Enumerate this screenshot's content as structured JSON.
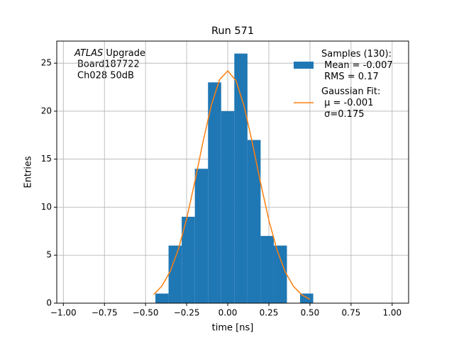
{
  "chart_data": {
    "type": "histogram",
    "title": "Run 571",
    "xlabel": "time [ns]",
    "ylabel": "Entries",
    "annotation_lines": [
      "ATLAS",
      "Upgrade",
      "Board187722",
      "Ch028 50dB"
    ],
    "xlim": [
      -1.04,
      1.1
    ],
    "ylim": [
      0,
      27.3
    ],
    "xticks": [
      {
        "value": -1.0,
        "label": "−1.00"
      },
      {
        "value": -0.75,
        "label": "−0.75"
      },
      {
        "value": -0.5,
        "label": "−0.50"
      },
      {
        "value": -0.25,
        "label": "−0.25"
      },
      {
        "value": 0,
        "label": "0.00"
      },
      {
        "value": 0.25,
        "label": "0.25"
      },
      {
        "value": 0.5,
        "label": "0.50"
      },
      {
        "value": 0.75,
        "label": "0.75"
      },
      {
        "value": 1.0,
        "label": "1.00"
      }
    ],
    "yticks": [
      0,
      5,
      10,
      15,
      20,
      25
    ],
    "grid": true,
    "legend": "upper right",
    "series": [
      {
        "type": "histogram",
        "name": "Samples (130):\n Mean = -0.007\n RMS = 0.17",
        "color": "#1f77b4",
        "bins": [
          -0.44,
          -0.36,
          -0.28,
          -0.2,
          -0.12,
          -0.04,
          0.04,
          0.12,
          0.2,
          0.28,
          0.36,
          0.44,
          0.52
        ],
        "values": [
          1,
          6,
          9,
          14,
          23,
          20,
          26,
          17,
          7,
          6,
          0,
          1
        ]
      },
      {
        "type": "line",
        "name": "Gaussian Fit:\n μ = -0.001\n σ=0.175",
        "color": "#ff7f0e",
        "x": [
          -0.45,
          -0.4,
          -0.35,
          -0.3,
          -0.25,
          -0.2,
          -0.15,
          -0.1,
          -0.05,
          0,
          0.05,
          0.1,
          0.15,
          0.2,
          0.25,
          0.3,
          0.35,
          0.4,
          0.45,
          0.5
        ],
        "values": [
          0.9,
          1.8,
          3.31,
          5.62,
          8.79,
          12.68,
          16.84,
          20.62,
          23.27,
          24.2,
          23.19,
          20.49,
          16.68,
          12.51,
          8.65,
          5.51,
          3.24,
          1.75,
          0.87,
          0.4
        ]
      }
    ]
  }
}
